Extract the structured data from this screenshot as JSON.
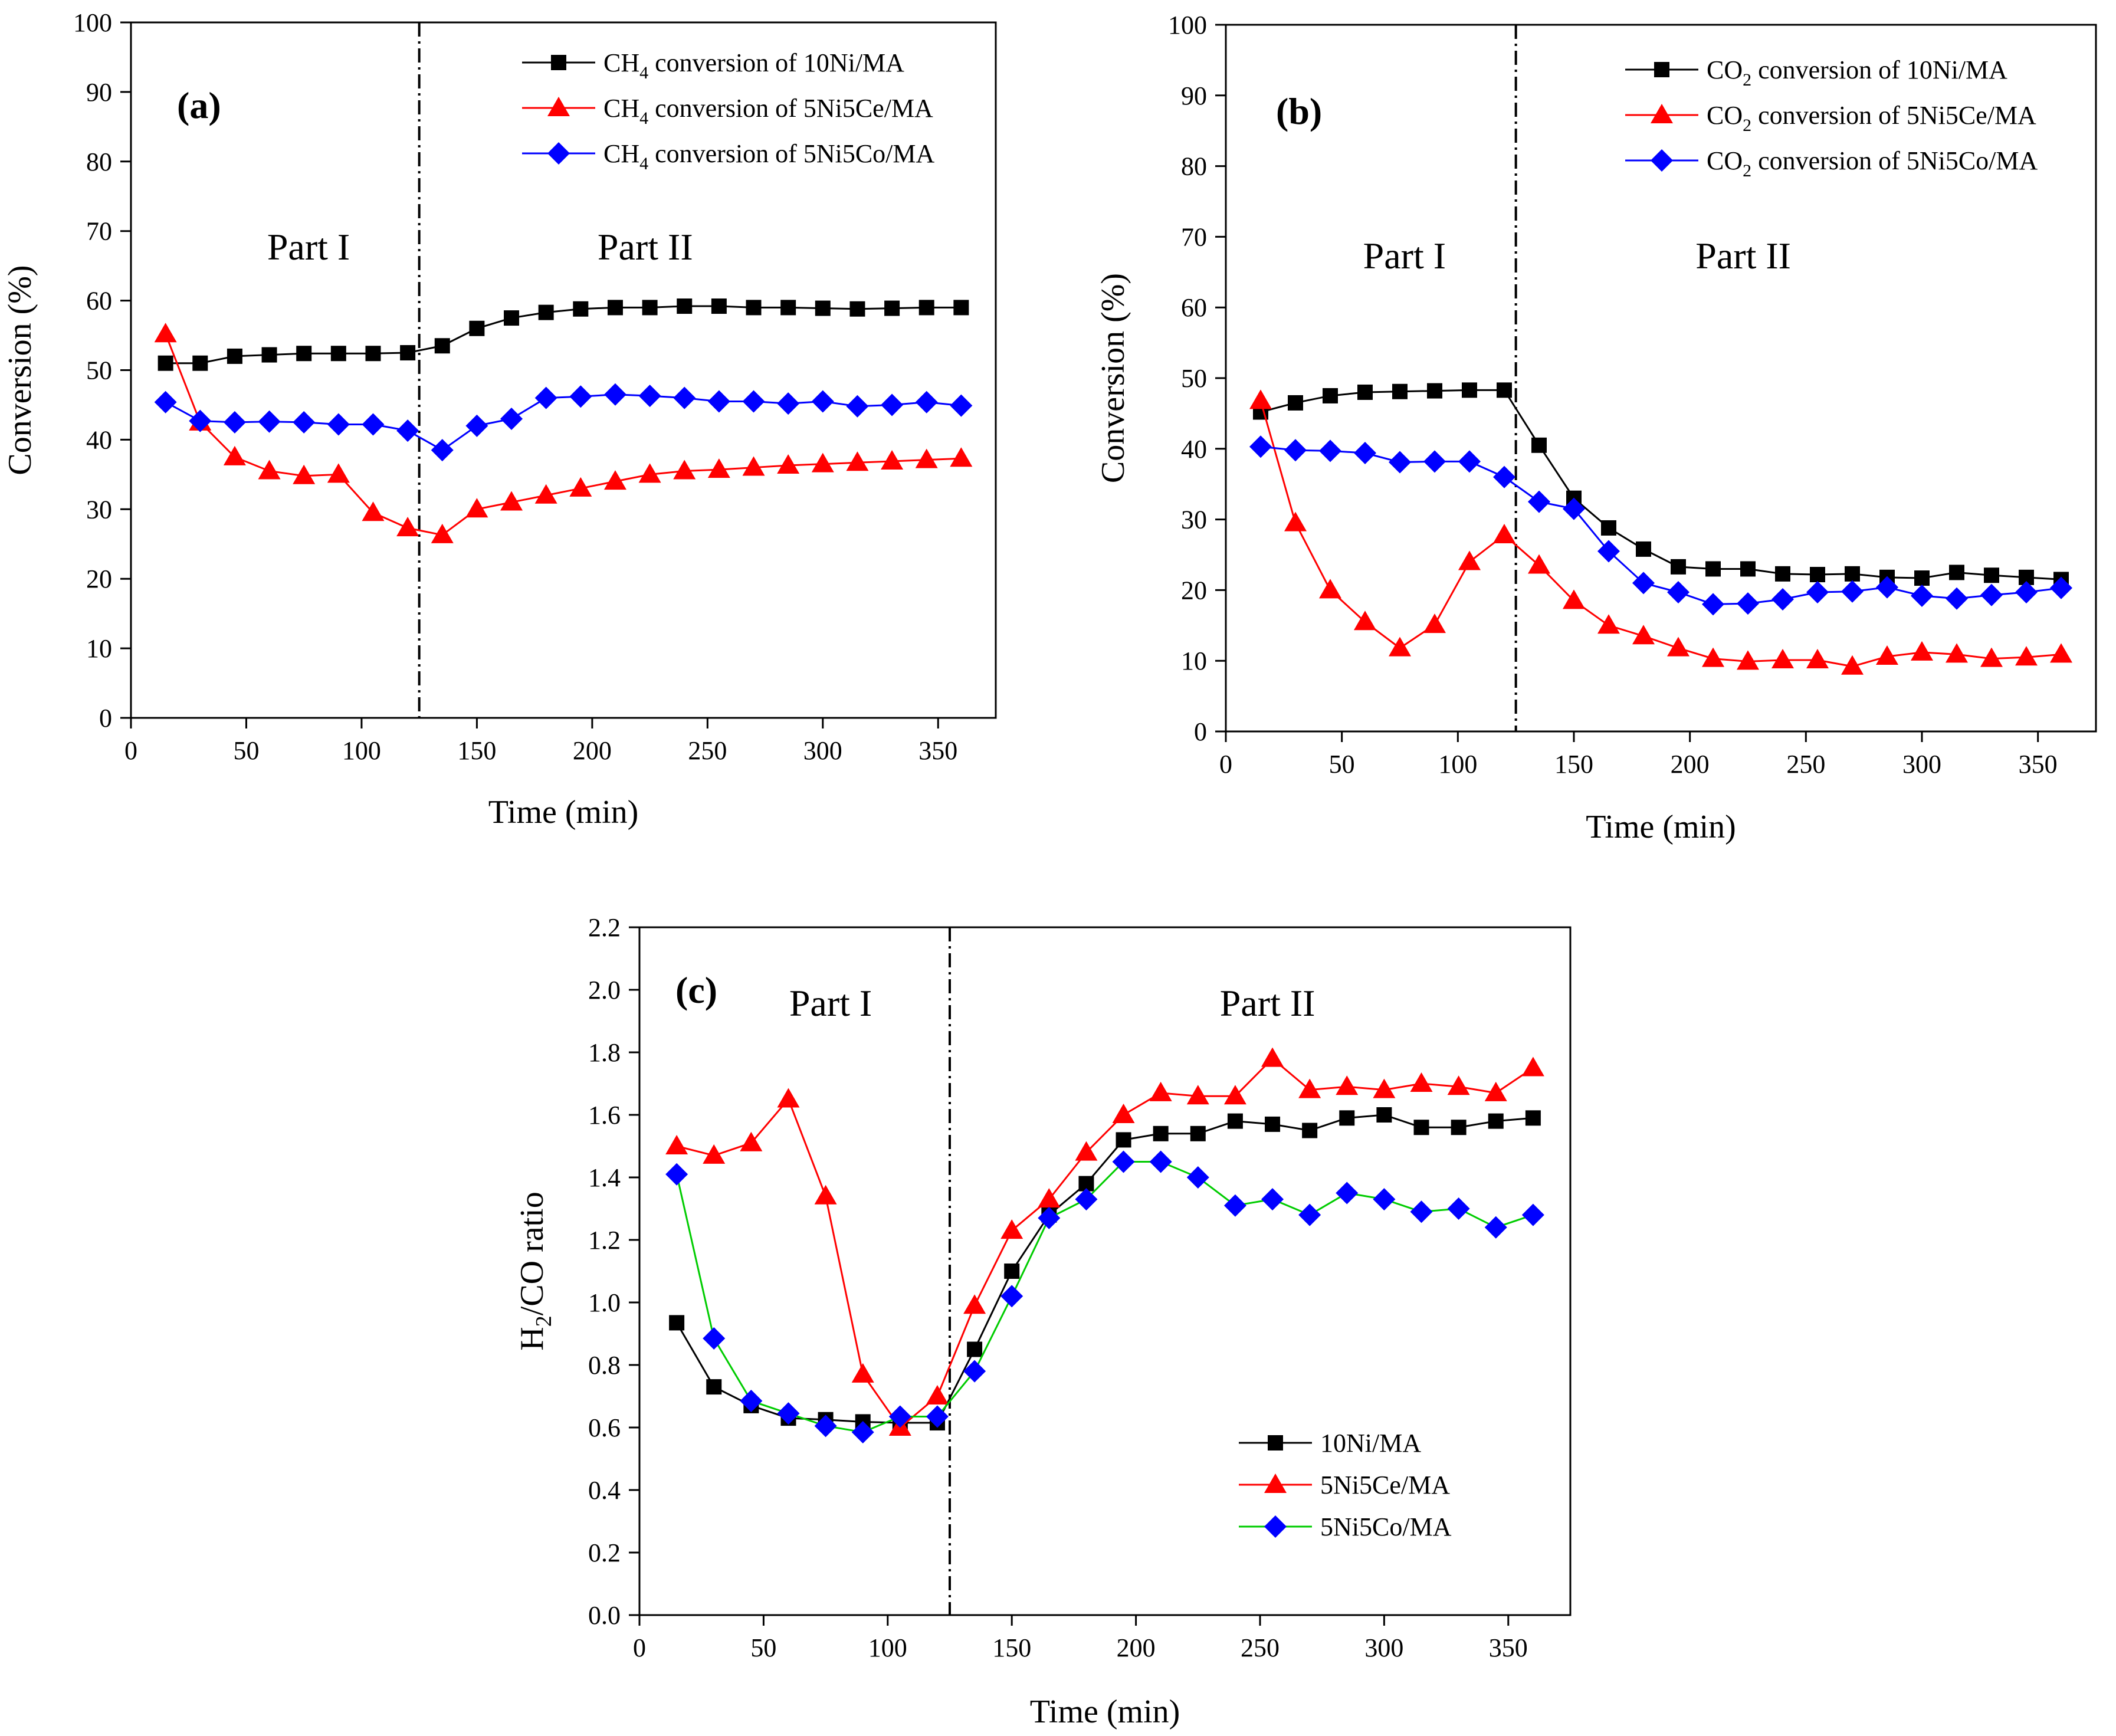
{
  "chart_data": [
    {
      "id": "a",
      "type": "line",
      "panel_label": "(a)",
      "xlabel": "Time  (min)",
      "ylabel": "Conversion (%)",
      "xlim": [
        0,
        375
      ],
      "ylim": [
        0,
        100
      ],
      "xticks": [
        0,
        50,
        100,
        150,
        200,
        250,
        300,
        350
      ],
      "yticks": [
        0,
        10,
        20,
        30,
        40,
        50,
        60,
        70,
        80,
        90,
        100
      ],
      "divider_x": 125,
      "regions": [
        {
          "label": "Part I",
          "x": 77
        },
        {
          "label": "Part II",
          "x": 223
        }
      ],
      "x": [
        15,
        30,
        45,
        60,
        75,
        90,
        105,
        120,
        135,
        150,
        165,
        180,
        195,
        210,
        225,
        240,
        255,
        270,
        285,
        300,
        315,
        330,
        345,
        360
      ],
      "legend": [
        {
          "prefix": "CH",
          "sub": "4",
          "suffix": " conversion of 10Ni/MA"
        },
        {
          "prefix": "CH",
          "sub": "4",
          "suffix": " conversion of 5Ni5Ce/MA"
        },
        {
          "prefix": "CH",
          "sub": "4",
          "suffix": " conversion of 5Ni5Co/MA"
        }
      ],
      "series": [
        {
          "name": "CH4 conversion of 10Ni/MA",
          "color": "#000000",
          "marker": "square",
          "values": [
            51,
            51,
            52,
            52.2,
            52.4,
            52.4,
            52.4,
            52.5,
            53.5,
            56,
            57.5,
            58.3,
            58.8,
            59,
            59,
            59.2,
            59.2,
            59,
            59,
            58.9,
            58.8,
            58.9,
            59,
            59
          ]
        },
        {
          "name": "CH4 conversion of 5Ni5Ce/MA",
          "color": "#ff0000",
          "marker": "triangle",
          "values": [
            55.2,
            42.5,
            37.5,
            35.5,
            34.8,
            35,
            29.5,
            27.3,
            26.3,
            30,
            31,
            32,
            33,
            34,
            35,
            35.5,
            35.7,
            36,
            36.3,
            36.5,
            36.7,
            36.9,
            37.1,
            37.3
          ]
        },
        {
          "name": "CH4 conversion of 5Ni5Co/MA",
          "color": "#0000ff",
          "marker": "diamond",
          "values": [
            45.4,
            42.7,
            42.5,
            42.6,
            42.5,
            42.2,
            42.2,
            41.3,
            38.5,
            42,
            43,
            46,
            46.2,
            46.5,
            46.3,
            46,
            45.5,
            45.5,
            45.2,
            45.5,
            44.8,
            45,
            45.4,
            44.9
          ]
        }
      ]
    },
    {
      "id": "b",
      "type": "line",
      "panel_label": "(b)",
      "xlabel": "Time  (min)",
      "ylabel": "Conversion (%)",
      "xlim": [
        0,
        375
      ],
      "ylim": [
        0,
        100
      ],
      "xticks": [
        0,
        50,
        100,
        150,
        200,
        250,
        300,
        350
      ],
      "yticks": [
        0,
        10,
        20,
        30,
        40,
        50,
        60,
        70,
        80,
        90,
        100
      ],
      "divider_x": 125,
      "regions": [
        {
          "label": "Part I",
          "x": 77
        },
        {
          "label": "Part II",
          "x": 223
        }
      ],
      "x": [
        15,
        30,
        45,
        60,
        75,
        90,
        105,
        120,
        135,
        150,
        165,
        180,
        195,
        210,
        225,
        240,
        255,
        270,
        285,
        300,
        315,
        330,
        345,
        360
      ],
      "legend": [
        {
          "prefix": "CO",
          "sub": "2",
          "suffix": " conversion of 10Ni/MA"
        },
        {
          "prefix": "CO",
          "sub": "2",
          "suffix": " conversion of 5Ni5Ce/MA"
        },
        {
          "prefix": "CO",
          "sub": "2",
          "suffix": " conversion of 5Ni5Co/MA"
        }
      ],
      "series": [
        {
          "name": "CO2 conversion of 10Ni/MA",
          "color": "#000000",
          "marker": "square",
          "values": [
            45.2,
            46.5,
            47.5,
            48,
            48.1,
            48.2,
            48.3,
            48.3,
            40.5,
            33,
            28.8,
            25.8,
            23.3,
            23,
            23,
            22.3,
            22.2,
            22.3,
            21.8,
            21.7,
            22.5,
            22.1,
            21.8,
            21.5
          ]
        },
        {
          "name": "CO2 conversion of 5Ni5Ce/MA",
          "color": "#ff0000",
          "marker": "triangle",
          "values": [
            46.8,
            29.5,
            20,
            15.5,
            11.8,
            15.1,
            24,
            27.8,
            23.5,
            18.5,
            15,
            13.5,
            11.8,
            10.3,
            9.9,
            10.1,
            10.1,
            9.2,
            10.6,
            11.2,
            10.9,
            10.3,
            10.5,
            10.9
          ]
        },
        {
          "name": "CO2 conversion of 5Ni5Co/MA",
          "color": "#0000ff",
          "marker": "diamond",
          "values": [
            40.3,
            39.8,
            39.7,
            39.4,
            38.1,
            38.2,
            38.2,
            36,
            32.5,
            31.5,
            25.5,
            21,
            19.7,
            18,
            18.1,
            18.7,
            19.7,
            19.8,
            20.4,
            19.2,
            18.8,
            19.3,
            19.7,
            20.3
          ]
        }
      ]
    },
    {
      "id": "c",
      "type": "line",
      "panel_label": "(c)",
      "xlabel": "Time (min)",
      "ylabel": "H2/CO ratio",
      "ylabel_parts": {
        "a": "H",
        "sub": "2",
        "b": "/CO ratio"
      },
      "xlim": [
        0,
        375
      ],
      "ylim": [
        0,
        2.2
      ],
      "xticks": [
        0,
        50,
        100,
        150,
        200,
        250,
        300,
        350
      ],
      "yticks": [
        "0.0",
        "0.2",
        "0.4",
        "0.6",
        "0.8",
        "1.0",
        "1.2",
        "1.4",
        "1.6",
        "1.8",
        "2.0",
        "2.2"
      ],
      "divider_x": 125,
      "regions": [
        {
          "label": "Part I",
          "x": 77
        },
        {
          "label": "Part II",
          "x": 253
        }
      ],
      "x": [
        15,
        30,
        45,
        60,
        75,
        90,
        105,
        120,
        135,
        150,
        165,
        180,
        195,
        210,
        225,
        240,
        255,
        270,
        285,
        300,
        315,
        330,
        345,
        360
      ],
      "legend": [
        {
          "prefix": "10Ni/MA",
          "sub": "",
          "suffix": ""
        },
        {
          "prefix": "5Ni5Ce/MA",
          "sub": "",
          "suffix": ""
        },
        {
          "prefix": "5Ni5Co/MA",
          "sub": "",
          "suffix": ""
        }
      ],
      "series": [
        {
          "name": "10Ni/MA",
          "color": "#000000",
          "marker": "square",
          "line_color": "#000000",
          "values": [
            0.935,
            0.73,
            0.67,
            0.63,
            0.625,
            0.618,
            0.615,
            0.615,
            0.85,
            1.1,
            1.28,
            1.38,
            1.52,
            1.54,
            1.54,
            1.58,
            1.57,
            1.55,
            1.59,
            1.6,
            1.56,
            1.56,
            1.58,
            1.59
          ]
        },
        {
          "name": "5Ni5Ce/MA",
          "color": "#ff0000",
          "marker": "triangle",
          "line_color": "#ff0000",
          "values": [
            1.5,
            1.47,
            1.51,
            1.65,
            1.34,
            0.77,
            0.6,
            0.7,
            0.99,
            1.23,
            1.33,
            1.48,
            1.6,
            1.67,
            1.66,
            1.66,
            1.78,
            1.68,
            1.69,
            1.68,
            1.7,
            1.69,
            1.67,
            1.75
          ]
        },
        {
          "name": "5Ni5Co/MA",
          "color": "#0000ff",
          "marker": "diamond",
          "line_color": "#00cc00",
          "values": [
            1.41,
            0.885,
            0.685,
            0.645,
            0.605,
            0.585,
            0.635,
            0.635,
            0.78,
            1.02,
            1.27,
            1.33,
            1.45,
            1.45,
            1.4,
            1.31,
            1.33,
            1.28,
            1.35,
            1.33,
            1.29,
            1.3,
            1.24,
            1.28
          ]
        }
      ]
    }
  ]
}
